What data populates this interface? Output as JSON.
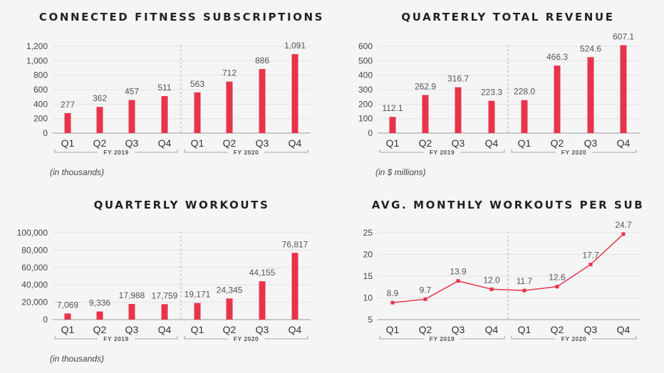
{
  "chart_data": [
    {
      "type": "bar",
      "title": "CONNECTED FITNESS SUBSCRIPTIONS",
      "note": "(in thousands)",
      "categories": [
        "Q1",
        "Q2",
        "Q3",
        "Q4",
        "Q1",
        "Q2",
        "Q3",
        "Q4"
      ],
      "groups": [
        "FY 2019",
        "FY 2020"
      ],
      "values": [
        277,
        362,
        457,
        511,
        563,
        712,
        886,
        1091
      ],
      "labels": [
        "277",
        "362",
        "457",
        "511",
        "563",
        "712",
        "886",
        "1,091"
      ],
      "ylim": [
        0,
        1200
      ],
      "yticks": [
        0,
        200,
        400,
        600,
        800,
        1000,
        1200
      ],
      "ytick_labels": [
        "0",
        "200",
        "400",
        "600",
        "800",
        "1,000",
        "1,200"
      ],
      "color": "#e8344a",
      "grid": true
    },
    {
      "type": "bar",
      "title": "QUARTERLY TOTAL REVENUE",
      "note": "(in $ millions)",
      "categories": [
        "Q1",
        "Q2",
        "Q3",
        "Q4",
        "Q1",
        "Q2",
        "Q3",
        "Q4"
      ],
      "groups": [
        "FY 2019",
        "FY 2020"
      ],
      "values": [
        112.1,
        262.9,
        316.7,
        223.3,
        228.0,
        466.3,
        524.6,
        607.1
      ],
      "labels": [
        "112.1",
        "262.9",
        "316.7",
        "223.3",
        "228.0",
        "466.3",
        "524.6",
        "607.1"
      ],
      "ylim": [
        0,
        600
      ],
      "yticks": [
        0,
        100,
        200,
        300,
        400,
        500,
        600
      ],
      "ytick_labels": [
        "0",
        "100",
        "200",
        "300",
        "400",
        "500",
        "600"
      ],
      "color": "#e8344a",
      "grid": true
    },
    {
      "type": "bar",
      "title": "QUARTERLY WORKOUTS",
      "note": "(in thousands)",
      "categories": [
        "Q1",
        "Q2",
        "Q3",
        "Q4",
        "Q1",
        "Q2",
        "Q3",
        "Q4"
      ],
      "groups": [
        "FY 2019",
        "FY 2020"
      ],
      "values": [
        7069,
        9336,
        17988,
        17759,
        19171,
        24345,
        44155,
        76817
      ],
      "labels": [
        "7,069",
        "9,336",
        "17,988",
        "17,759",
        "19,171",
        "24,345",
        "44,155",
        "76,817"
      ],
      "ylim": [
        0,
        100000
      ],
      "yticks": [
        0,
        20000,
        40000,
        60000,
        80000,
        100000
      ],
      "ytick_labels": [
        "0",
        "20,000",
        "40,000",
        "60,000",
        "80,000",
        "100,000"
      ],
      "color": "#e8344a",
      "grid": true
    },
    {
      "type": "line",
      "title": "AVG. MONTHLY WORKOUTS PER SUB",
      "categories": [
        "Q1",
        "Q2",
        "Q3",
        "Q4",
        "Q1",
        "Q2",
        "Q3",
        "Q4"
      ],
      "groups": [
        "FY 2019",
        "FY 2020"
      ],
      "values": [
        8.9,
        9.7,
        13.9,
        12.0,
        11.7,
        12.6,
        17.7,
        24.7
      ],
      "labels": [
        "8.9",
        "9.7",
        "13.9",
        "12.0",
        "11.7",
        "12.6",
        "17.7",
        "24.7"
      ],
      "ylim": [
        5,
        25
      ],
      "yticks": [
        5,
        10,
        15,
        20,
        25
      ],
      "ytick_labels": [
        "5",
        "10",
        "15",
        "20",
        "25"
      ],
      "color": "#e8344a",
      "grid": true
    }
  ]
}
